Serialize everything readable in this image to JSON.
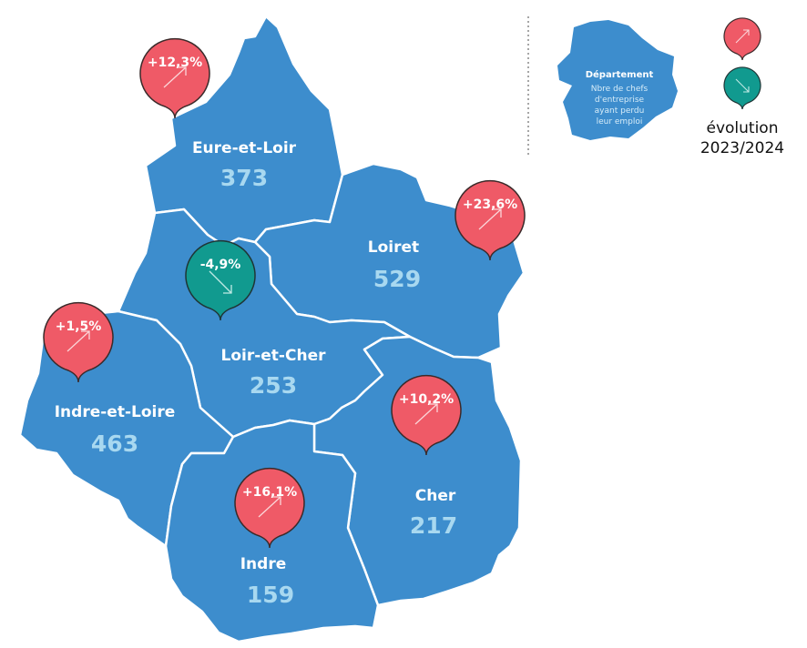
{
  "colors": {
    "department_fill": "#3d8dcd",
    "border": "#ffffff",
    "value_text": "#a8d8f0",
    "increase": "#ef5a67",
    "decrease": "#119a8f"
  },
  "departments": [
    {
      "id": "eure-et-loir",
      "name": "Eure-et-Loir",
      "value": "373",
      "evolution": "+12,3%",
      "trend": "up"
    },
    {
      "id": "loiret",
      "name": "Loiret",
      "value": "529",
      "evolution": "+23,6%",
      "trend": "up"
    },
    {
      "id": "loir-et-cher",
      "name": "Loir-et-Cher",
      "value": "253",
      "evolution": "-4,9%",
      "trend": "down"
    },
    {
      "id": "indre-et-loire",
      "name": "Indre-et-Loire",
      "value": "463",
      "evolution": "+1,5%",
      "trend": "up"
    },
    {
      "id": "cher",
      "name": "Cher",
      "value": "217",
      "evolution": "+10,2%",
      "trend": "up"
    },
    {
      "id": "indre",
      "name": "Indre",
      "value": "159",
      "evolution": "+16,1%",
      "trend": "up"
    }
  ],
  "legend": {
    "title": "Département",
    "subtitle_lines": [
      "Nbre de chefs",
      "d'entreprise",
      "ayant perdu",
      "leur emploi"
    ],
    "evolution_line1": "évolution",
    "evolution_line2": "2023/2024",
    "increase_icon": "arrow-up-right-icon",
    "decrease_icon": "arrow-down-right-icon"
  }
}
